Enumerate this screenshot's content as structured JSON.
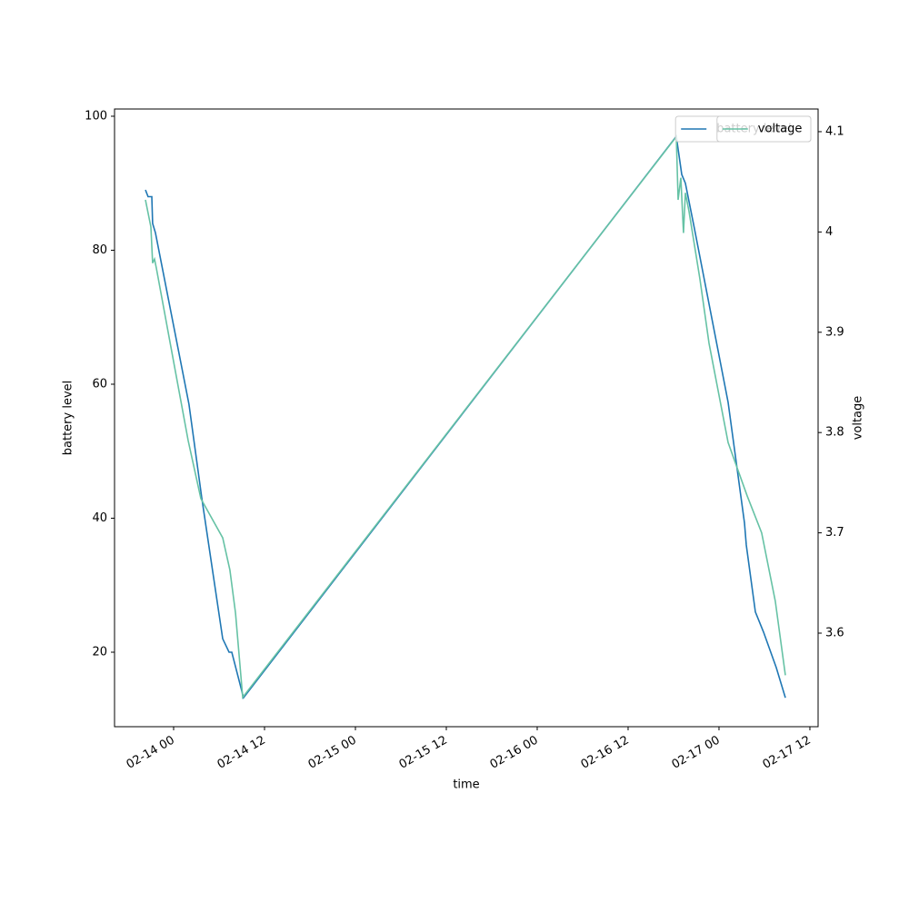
{
  "chart_data": {
    "type": "line",
    "x_label": "time",
    "y_label": "battery level",
    "y2_label": "voltage",
    "xlim": [
      "02-13 16:12",
      "02-17 13:05"
    ],
    "xticks": [
      "02-14 00",
      "02-14 12",
      "02-15 00",
      "02-15 12",
      "02-16 00",
      "02-16 12",
      "02-17 00",
      "02-17 12"
    ],
    "ylim": [
      8.88,
      101.08
    ],
    "yticks": [
      20,
      40,
      60,
      80,
      100
    ],
    "y2lim": [
      3.5067,
      4.1226
    ],
    "y2ticks": [
      3.6,
      3.7,
      3.8,
      3.9,
      4.0,
      4.1
    ],
    "legend": "upper right",
    "series": [
      {
        "name": "battery level",
        "color": "#1f77b4",
        "x": [
          "02-13 20:17",
          "02-13 20:38",
          "02-13 21:07",
          "02-13 21:14",
          "02-13 21:36",
          "02-14 02:02",
          "02-14 03:43",
          "02-14 06:29",
          "02-14 07:19",
          "02-14 07:41",
          "02-14 09:14",
          "02-16 18:22",
          "02-16 19:05",
          "02-16 19:34",
          "02-16 20:46",
          "02-17 01:12",
          "02-17 03:22",
          "02-17 03:36",
          "02-17 04:05",
          "02-17 04:48",
          "02-17 05:53",
          "02-17 07:34",
          "02-17 08:46"
        ],
        "values": [
          89,
          88,
          88,
          84,
          82.6,
          57,
          43,
          22,
          20,
          20,
          13.2,
          97,
          91.3,
          90,
          83.2,
          57.3,
          39.3,
          36,
          32,
          26,
          23,
          17.7,
          13.2
        ]
      },
      {
        "name": "voltage",
        "color": "#66c2a5",
        "axis": "y2",
        "x": [
          "02-13 20:17",
          "02-13 21:00",
          "02-13 21:14",
          "02-13 21:29",
          "02-13 21:43",
          "02-14 01:55",
          "02-14 03:36",
          "02-14 06:29",
          "02-14 07:26",
          "02-14 08:10",
          "02-14 09:07",
          "02-16 18:22",
          "02-16 18:36",
          "02-16 18:58",
          "02-16 19:19",
          "02-16 19:34",
          "02-16 20:02",
          "02-16 21:29",
          "02-16 22:41",
          "02-17 01:12",
          "02-17 03:43",
          "02-17 05:38",
          "02-17 07:26",
          "02-17 08:46"
        ],
        "values": [
          4.032,
          4.005,
          3.969,
          3.973,
          3.964,
          3.792,
          3.734,
          3.695,
          3.663,
          3.62,
          3.536,
          4.095,
          4.032,
          4.054,
          3.999,
          4.039,
          4.021,
          3.953,
          3.889,
          3.79,
          3.737,
          3.7,
          3.632,
          3.558
        ]
      }
    ]
  }
}
